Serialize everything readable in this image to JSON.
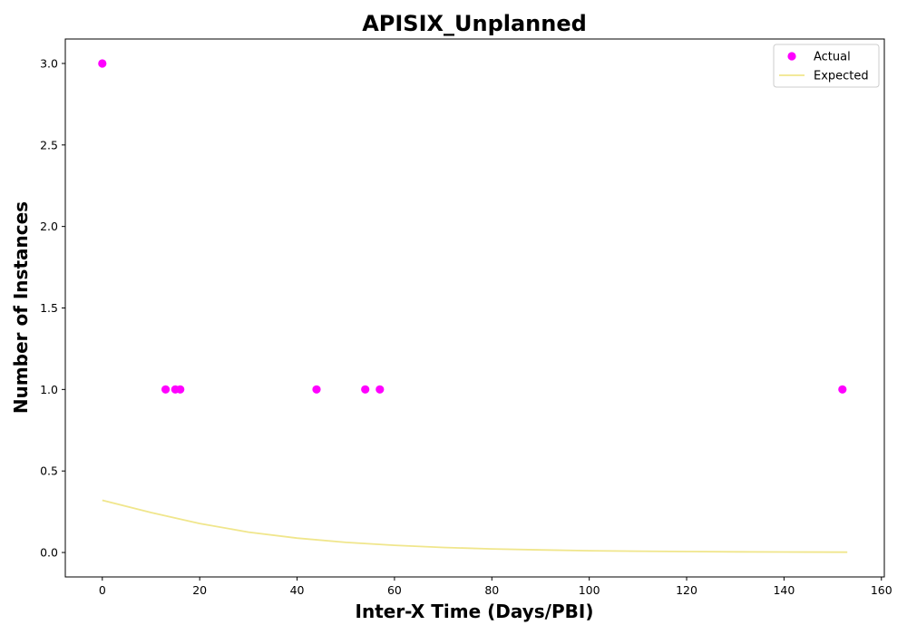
{
  "chart_data": {
    "type": "scatter",
    "title": "APISIX_Unplanned",
    "xlabel": "Inter-X Time (Days/PBI)",
    "ylabel": "Number of Instances",
    "xlim": [
      -7.6,
      160.6
    ],
    "ylim": [
      -0.15,
      3.15
    ],
    "xticks": [
      0,
      20,
      40,
      60,
      80,
      100,
      120,
      140,
      160
    ],
    "yticks": [
      0.0,
      0.5,
      1.0,
      1.5,
      2.0,
      2.5,
      3.0
    ],
    "grid": false,
    "legend": {
      "position": "top-right",
      "entries": [
        "Actual",
        "Expected"
      ]
    },
    "series": [
      {
        "name": "Actual",
        "kind": "scatter",
        "color": "#ff00ff",
        "points": [
          {
            "x": 0,
            "y": 3
          },
          {
            "x": 13,
            "y": 1
          },
          {
            "x": 15,
            "y": 1
          },
          {
            "x": 16,
            "y": 1
          },
          {
            "x": 44,
            "y": 1
          },
          {
            "x": 54,
            "y": 1
          },
          {
            "x": 57,
            "y": 1
          },
          {
            "x": 152,
            "y": 1
          }
        ]
      },
      {
        "name": "Expected",
        "kind": "line",
        "color": "#f0e68c",
        "points": [
          {
            "x": 0,
            "y": 0.32
          },
          {
            "x": 10,
            "y": 0.245
          },
          {
            "x": 20,
            "y": 0.178
          },
          {
            "x": 30,
            "y": 0.125
          },
          {
            "x": 40,
            "y": 0.088
          },
          {
            "x": 50,
            "y": 0.062
          },
          {
            "x": 60,
            "y": 0.044
          },
          {
            "x": 70,
            "y": 0.031
          },
          {
            "x": 80,
            "y": 0.022
          },
          {
            "x": 90,
            "y": 0.016
          },
          {
            "x": 100,
            "y": 0.011
          },
          {
            "x": 110,
            "y": 0.008
          },
          {
            "x": 120,
            "y": 0.006
          },
          {
            "x": 130,
            "y": 0.004
          },
          {
            "x": 140,
            "y": 0.003
          },
          {
            "x": 153,
            "y": 0.002
          }
        ]
      }
    ]
  }
}
